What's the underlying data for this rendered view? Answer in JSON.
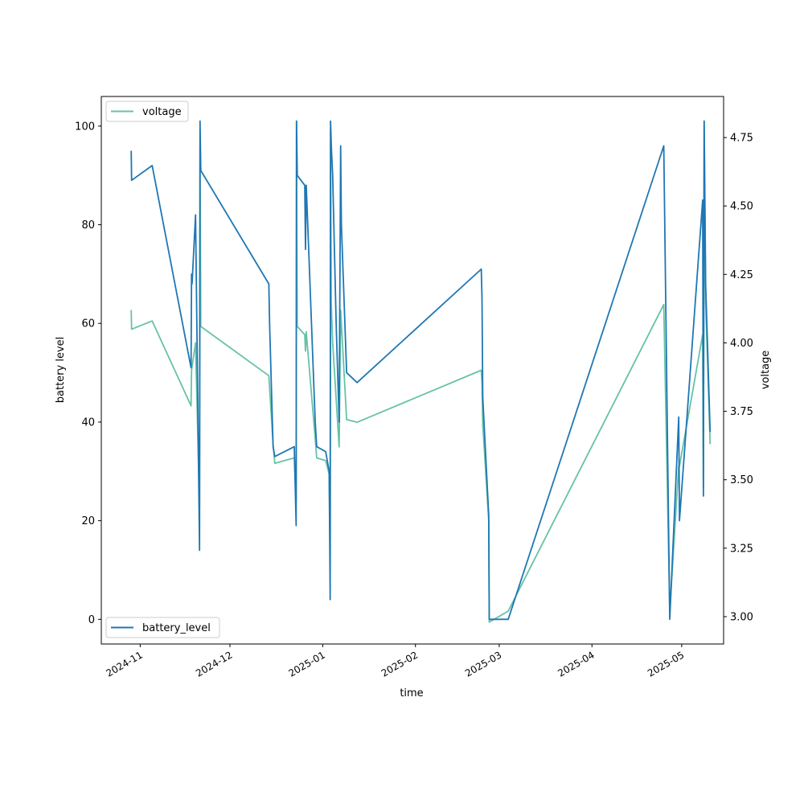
{
  "chart_data": {
    "type": "line",
    "xlabel": "time",
    "x_axis_type": "date",
    "xlim": [
      "2024-10-19",
      "2025-05-15"
    ],
    "x_ticks": [
      {
        "date": "2024-11-01",
        "label": "2024-11"
      },
      {
        "date": "2024-12-01",
        "label": "2024-12"
      },
      {
        "date": "2025-01-01",
        "label": "2025-01"
      },
      {
        "date": "2025-02-01",
        "label": "2025-02"
      },
      {
        "date": "2025-03-01",
        "label": "2025-03"
      },
      {
        "date": "2025-04-01",
        "label": "2025-04"
      },
      {
        "date": "2025-05-01",
        "label": "2025-05"
      }
    ],
    "y_left": {
      "label": "battery level",
      "lim": [
        -5,
        106
      ],
      "ticks": [
        0,
        20,
        40,
        60,
        80,
        100
      ],
      "tick_labels": [
        "0",
        "20",
        "40",
        "60",
        "80",
        "100"
      ]
    },
    "y_right": {
      "label": "voltage",
      "lim": [
        2.9,
        4.9
      ],
      "ticks": [
        3.0,
        3.25,
        3.5,
        3.75,
        4.0,
        4.25,
        4.5,
        4.75
      ],
      "tick_labels": [
        "3.00",
        "3.25",
        "3.50",
        "3.75",
        "4.00",
        "4.25",
        "4.50",
        "4.75"
      ]
    },
    "grid": false,
    "series": [
      {
        "name": "battery_level",
        "axis": "left",
        "color": "#1f77b4",
        "legend_position": "lower left",
        "points": [
          [
            "2024-10-29T00:00",
            95
          ],
          [
            "2024-10-29T03:00",
            89
          ],
          [
            "2024-11-05T00:00",
            92
          ],
          [
            "2024-11-18T00:00",
            51
          ],
          [
            "2024-11-18T04:00",
            70
          ],
          [
            "2024-11-18T08:00",
            68
          ],
          [
            "2024-11-19T12:00",
            82
          ],
          [
            "2024-11-20T20:00",
            14
          ],
          [
            "2024-11-21T00:00",
            101
          ],
          [
            "2024-11-21T06:00",
            91
          ],
          [
            "2024-12-14T00:00",
            68
          ],
          [
            "2024-12-14T06:00",
            60
          ],
          [
            "2024-12-15T10:00",
            35
          ],
          [
            "2024-12-16T00:00",
            33
          ],
          [
            "2024-12-22T12:00",
            35
          ],
          [
            "2024-12-23T03:00",
            19
          ],
          [
            "2024-12-23T06:00",
            101
          ],
          [
            "2024-12-23T12:00",
            90
          ],
          [
            "2024-12-26T00:00",
            88
          ],
          [
            "2024-12-26T06:00",
            75
          ],
          [
            "2024-12-26T12:00",
            88
          ],
          [
            "2024-12-29T12:00",
            40
          ],
          [
            "2024-12-30T00:00",
            35
          ],
          [
            "2025-01-02T00:00",
            34
          ],
          [
            "2025-01-03T04:00",
            30
          ],
          [
            "2025-01-03T12:00",
            4
          ],
          [
            "2025-01-03T15:00",
            101
          ],
          [
            "2025-01-03T21:00",
            96
          ],
          [
            "2025-01-04T08:00",
            90
          ],
          [
            "2025-01-05T12:00",
            60
          ],
          [
            "2025-01-06T12:00",
            40
          ],
          [
            "2025-01-07T00:00",
            96
          ],
          [
            "2025-01-07T06:00",
            80
          ],
          [
            "2025-01-09T00:00",
            50
          ],
          [
            "2025-01-12T12:00",
            48
          ],
          [
            "2025-02-23T00:00",
            71
          ],
          [
            "2025-02-23T06:00",
            65
          ],
          [
            "2025-02-23T12:00",
            45
          ],
          [
            "2025-02-25T12:00",
            21
          ],
          [
            "2025-02-25T16:00",
            0
          ],
          [
            "2025-03-04T00:00",
            0
          ],
          [
            "2025-04-25T00:00",
            96
          ],
          [
            "2025-04-27T00:00",
            0
          ],
          [
            "2025-04-30T00:00",
            41
          ],
          [
            "2025-04-30T06:00",
            20
          ],
          [
            "2025-05-08T00:00",
            85
          ],
          [
            "2025-05-08T06:00",
            25
          ],
          [
            "2025-05-08T12:00",
            101
          ],
          [
            "2025-05-09T00:00",
            68
          ],
          [
            "2025-05-10T12:00",
            38
          ]
        ]
      },
      {
        "name": "voltage",
        "axis": "right",
        "color": "#66c2a5",
        "legend_position": "upper left",
        "points": [
          [
            "2024-10-29T00:00",
            4.12
          ],
          [
            "2024-10-29T03:00",
            4.05
          ],
          [
            "2024-11-05T00:00",
            4.08
          ],
          [
            "2024-11-18T00:00",
            3.77
          ],
          [
            "2024-11-18T04:00",
            3.9
          ],
          [
            "2024-11-19T12:00",
            4.0
          ],
          [
            "2024-11-20T20:00",
            3.4
          ],
          [
            "2024-11-21T00:00",
            4.72
          ],
          [
            "2024-11-21T06:00",
            4.06
          ],
          [
            "2024-12-14T00:00",
            3.88
          ],
          [
            "2024-12-15T10:00",
            3.63
          ],
          [
            "2024-12-16T00:00",
            3.56
          ],
          [
            "2024-12-22T12:00",
            3.58
          ],
          [
            "2024-12-23T03:00",
            3.42
          ],
          [
            "2024-12-23T06:00",
            4.81
          ],
          [
            "2024-12-23T12:00",
            4.06
          ],
          [
            "2024-12-26T00:00",
            4.03
          ],
          [
            "2024-12-26T06:00",
            3.97
          ],
          [
            "2024-12-26T12:00",
            4.04
          ],
          [
            "2024-12-29T12:00",
            3.65
          ],
          [
            "2024-12-30T00:00",
            3.58
          ],
          [
            "2025-01-02T00:00",
            3.57
          ],
          [
            "2025-01-03T04:00",
            3.52
          ],
          [
            "2025-01-03T12:00",
            3.2
          ],
          [
            "2025-01-03T15:00",
            4.78
          ],
          [
            "2025-01-03T21:00",
            4.14
          ],
          [
            "2025-01-04T08:00",
            4.0
          ],
          [
            "2025-01-06T12:00",
            3.62
          ],
          [
            "2025-01-07T00:00",
            4.12
          ],
          [
            "2025-01-09T00:00",
            3.72
          ],
          [
            "2025-01-12T12:00",
            3.71
          ],
          [
            "2025-02-23T00:00",
            3.9
          ],
          [
            "2025-02-23T06:00",
            3.85
          ],
          [
            "2025-02-23T12:00",
            3.7
          ],
          [
            "2025-02-25T12:00",
            3.35
          ],
          [
            "2025-02-25T16:00",
            2.98
          ],
          [
            "2025-03-04T00:00",
            3.02
          ],
          [
            "2025-04-25T00:00",
            4.14
          ],
          [
            "2025-04-27T00:00",
            3.02
          ],
          [
            "2025-04-30T00:00",
            3.55
          ],
          [
            "2025-04-30T06:00",
            3.55
          ],
          [
            "2025-05-08T00:00",
            4.03
          ],
          [
            "2025-05-08T06:00",
            3.47
          ],
          [
            "2025-05-08T12:00",
            4.81
          ],
          [
            "2025-05-09T00:00",
            4.15
          ],
          [
            "2025-05-10T12:00",
            3.63
          ]
        ]
      }
    ]
  }
}
